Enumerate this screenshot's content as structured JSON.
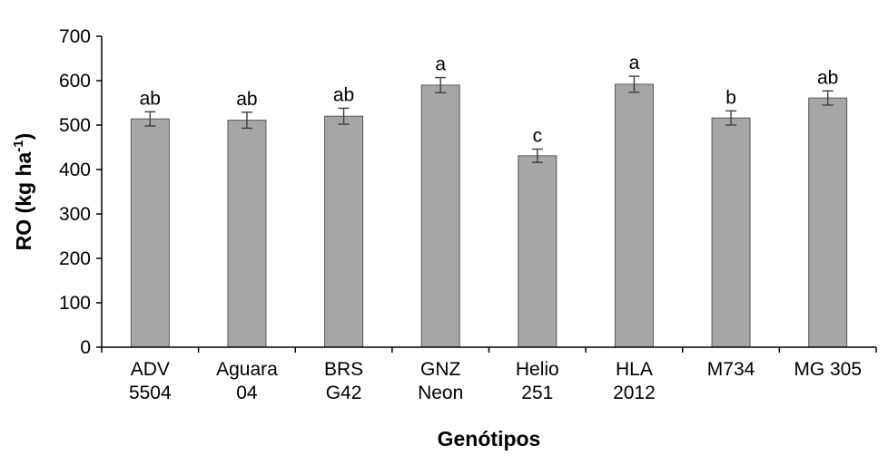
{
  "chart_data": {
    "type": "bar",
    "categories": [
      [
        "ADV",
        "5504"
      ],
      [
        "Aguara",
        "04"
      ],
      [
        "BRS",
        "G42"
      ],
      [
        "GNZ",
        "Neon"
      ],
      [
        "Helio",
        "251"
      ],
      [
        "HLA",
        "2012"
      ],
      [
        "M734"
      ],
      [
        "MG 305"
      ]
    ],
    "values": [
      514,
      511,
      520,
      590,
      431,
      592,
      516,
      561
    ],
    "errors": [
      16,
      18,
      18,
      17,
      15,
      18,
      16,
      16
    ],
    "significance": [
      "ab",
      "ab",
      "ab",
      "a",
      "c",
      "a",
      "b",
      "ab"
    ],
    "xlabel": "Genótipos",
    "ylabel_main": "RO (kg ha",
    "ylabel_sup": "-1",
    "ylabel_end": ")",
    "ylim": [
      0,
      700
    ],
    "yticks": [
      0,
      100,
      200,
      300,
      400,
      500,
      600,
      700
    ],
    "grid": false,
    "bar_color": "#a6a6a6"
  }
}
